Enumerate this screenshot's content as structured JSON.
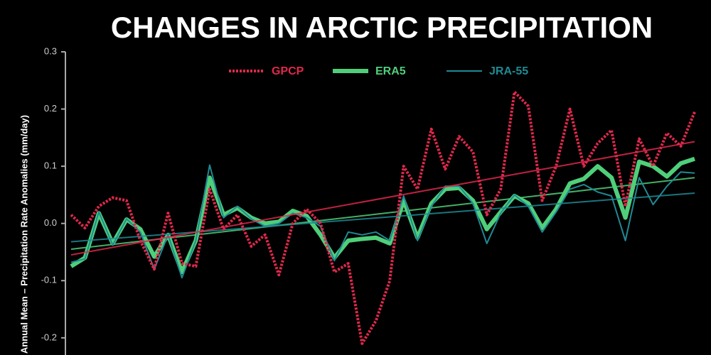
{
  "chart_data": {
    "type": "line",
    "title": "CHANGES IN ARCTIC PRECIPITATION",
    "y_label": "Annual Mean – Precipitation Rate Anomalies (mm/day)",
    "ylim": [
      -0.23,
      0.3
    ],
    "yticks": [
      0.3,
      0.2,
      0.1,
      {
        "value": 0,
        "label": "0.0"
      },
      -0.1,
      -0.2
    ],
    "series": [
      {
        "name": "GPCP",
        "color": "#e0284b",
        "dash": true,
        "width": 4,
        "values": [
          0.015,
          -0.008,
          0.03,
          0.045,
          0.04,
          -0.03,
          -0.08,
          0.018,
          -0.07,
          -0.075,
          0.06,
          -0.01,
          0.015,
          -0.04,
          -0.02,
          -0.09,
          0.0,
          0.025,
          0.0,
          -0.085,
          -0.07,
          -0.21,
          -0.17,
          -0.1,
          0.1,
          0.06,
          0.165,
          0.095,
          0.152,
          0.125,
          0.015,
          0.06,
          0.23,
          0.205,
          0.04,
          0.1,
          0.2,
          0.1,
          0.14,
          0.163,
          0.03,
          0.148,
          0.1,
          0.158,
          0.135,
          0.195
        ],
        "trend": [
          -0.055,
          0.143
        ]
      },
      {
        "name": "ERA5",
        "color": "#4fcf7a",
        "dash": false,
        "width": 6,
        "values": [
          -0.075,
          -0.06,
          0.018,
          -0.035,
          0.007,
          -0.01,
          -0.058,
          -0.02,
          -0.085,
          -0.03,
          0.08,
          0.015,
          0.027,
          0.01,
          0.0,
          0.003,
          0.022,
          0.013,
          -0.02,
          -0.06,
          -0.03,
          -0.027,
          -0.025,
          -0.035,
          0.04,
          -0.025,
          0.035,
          0.06,
          0.062,
          0.04,
          -0.01,
          0.02,
          0.048,
          0.035,
          -0.008,
          0.025,
          0.07,
          0.078,
          0.1,
          0.08,
          0.01,
          0.108,
          0.1,
          0.082,
          0.105,
          0.113
        ],
        "trend": [
          -0.045,
          0.08
        ]
      },
      {
        "name": "JRA-55",
        "color": "#1f8a94",
        "dash": false,
        "width": 2,
        "values": [
          -0.068,
          -0.062,
          0.02,
          -0.038,
          0.008,
          -0.015,
          -0.08,
          -0.02,
          -0.095,
          -0.03,
          0.102,
          0.01,
          0.03,
          0.008,
          -0.005,
          0.0,
          0.018,
          0.01,
          -0.005,
          -0.065,
          -0.015,
          -0.02,
          -0.015,
          -0.03,
          0.048,
          -0.03,
          0.03,
          0.065,
          0.065,
          0.035,
          -0.035,
          0.018,
          0.05,
          0.03,
          -0.015,
          0.02,
          0.06,
          0.068,
          0.055,
          0.048,
          -0.03,
          0.08,
          0.033,
          0.065,
          0.09,
          0.088
        ],
        "trend": [
          -0.032,
          0.053
        ]
      }
    ]
  }
}
